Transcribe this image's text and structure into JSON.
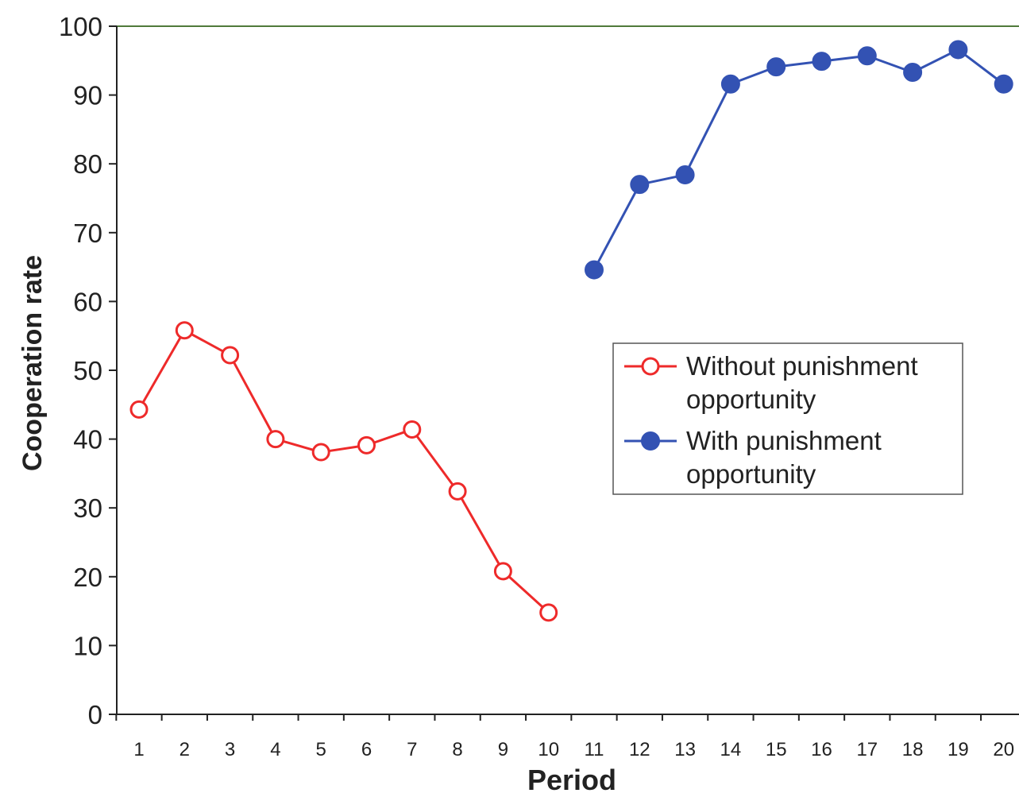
{
  "chart_data": {
    "type": "line",
    "title": "",
    "xlabel": "Period",
    "ylabel": "Cooperation rate",
    "x_ticks": [
      "1",
      "2",
      "3",
      "4",
      "5",
      "6",
      "7",
      "8",
      "9",
      "10",
      "11",
      "12",
      "13",
      "14",
      "15",
      "16",
      "17",
      "18",
      "19",
      "20"
    ],
    "y_ticks": [
      "0",
      "10",
      "20",
      "30",
      "40",
      "50",
      "60",
      "70",
      "80",
      "90",
      "100"
    ],
    "ylim": [
      0,
      100
    ],
    "xlim": [
      0.5,
      20.5
    ],
    "grid": false,
    "legend_position": "center-right",
    "series": [
      {
        "name_lines": [
          "Without punishment",
          "opportunity"
        ],
        "color": "#ee2a2a",
        "marker": "open-circle",
        "x": [
          1,
          2,
          3,
          4,
          5,
          6,
          7,
          8,
          9,
          10
        ],
        "y": [
          44.3,
          55.8,
          52.2,
          40.0,
          38.1,
          39.1,
          41.4,
          32.4,
          20.8,
          14.8
        ]
      },
      {
        "name_lines": [
          "With punishment",
          "opportunity"
        ],
        "color": "#3352b3",
        "marker": "filled-circle",
        "x": [
          11,
          12,
          13,
          14,
          15,
          16,
          17,
          18,
          19,
          20
        ],
        "y": [
          64.6,
          77.0,
          78.4,
          91.6,
          94.1,
          94.9,
          95.7,
          93.3,
          96.6,
          91.6
        ]
      }
    ]
  }
}
